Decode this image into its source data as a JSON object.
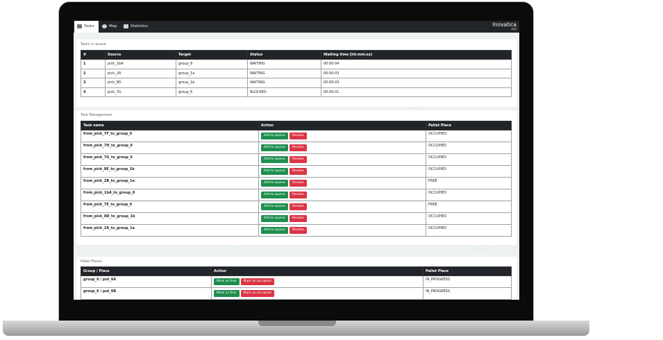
{
  "nav": {
    "tabs": [
      "Tasks",
      "Map",
      "Statistics"
    ],
    "logo": "Inovatica",
    "logo_sub": "AGV"
  },
  "queue": {
    "title": "Tasks in queue",
    "columns": [
      "#",
      "Source",
      "Target",
      "Status",
      "Waiting time [hh:mm:ss]"
    ],
    "rows": [
      [
        1,
        "pick_1bA",
        "group_8",
        "WAITING",
        "00:00:04"
      ],
      [
        2,
        "pick_2A",
        "group_1a",
        "WAITING",
        "00:00:03"
      ],
      [
        3,
        "pick_8D",
        "group_1b",
        "WAITING",
        "00:00:03"
      ],
      [
        4,
        "pick_7G",
        "group_6",
        "BLOCKED",
        "00:00:01"
      ]
    ]
  },
  "management": {
    "title": "Task Management",
    "columns": [
      "Task name",
      "Action",
      "Pallet Place"
    ],
    "actions": [
      "Add to queue",
      "Revoke"
    ],
    "rows": [
      [
        "from_pick_7F_to_group_6",
        "OCCUPIED"
      ],
      [
        "from_pick_7H_to_group_6",
        "OCCUPIED"
      ],
      [
        "from_pick_7G_to_group_6",
        "OCCUPIED"
      ],
      [
        "from_pick_8E_to_group_1b",
        "OCCUPIED"
      ],
      [
        "from_pick_2B_to_group_1a",
        "FREE"
      ],
      [
        "from_pick_1bA_to_group_8",
        "OCCUPIED"
      ],
      [
        "from_pick_7E_to_group_6",
        "FREE"
      ],
      [
        "from_pick_8D_to_group_1b",
        "OCCUPIED"
      ],
      [
        "from_pick_2A_to_group_1a",
        "OCCUPIED"
      ]
    ]
  },
  "pallets": {
    "title": "Pallet Places",
    "columns": [
      "Group / Place",
      "Action",
      "Pallet Place"
    ],
    "actions": [
      "Mark as free",
      "Mark as occupied"
    ],
    "rows": [
      [
        "group_6 / put_6A",
        "IN_PROGRESS"
      ],
      [
        "group_6 / put_6B",
        "IN_PROGRESS"
      ]
    ]
  }
}
